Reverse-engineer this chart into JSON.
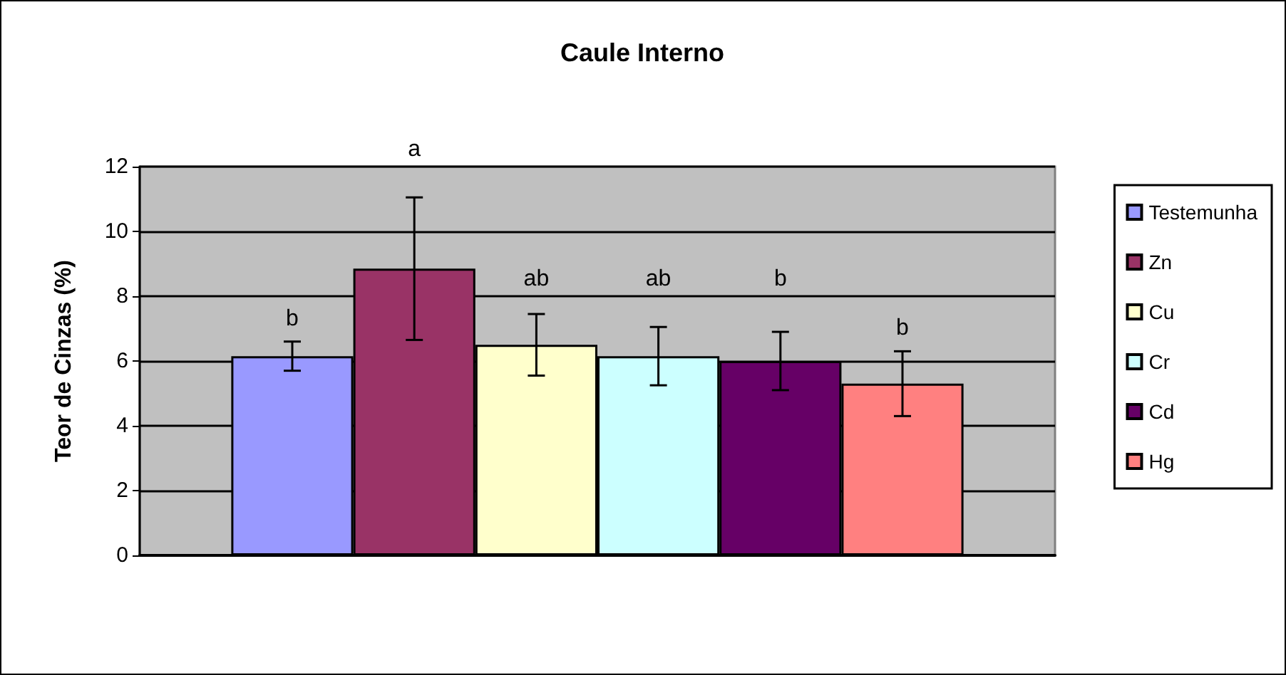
{
  "chart_data": {
    "type": "bar",
    "title": "Caule Interno",
    "ylabel": "Teor de Cinzas (%)",
    "categories": [
      null
    ],
    "series": [
      {
        "name": "Testemunha",
        "color": "#9999ff",
        "values": [
          6.15
        ],
        "errors": [
          0.45
        ]
      },
      {
        "name": "Zn",
        "color": "#993366",
        "values": [
          8.85
        ],
        "errors": [
          2.2
        ]
      },
      {
        "name": "Cu",
        "color": "#ffffcc",
        "values": [
          6.5
        ],
        "errors": [
          0.95
        ]
      },
      {
        "name": "Cr",
        "color": "#ccffff",
        "values": [
          6.15
        ],
        "errors": [
          0.9
        ]
      },
      {
        "name": "Cd",
        "color": "#660066",
        "values": [
          6.0
        ],
        "errors": [
          0.9
        ]
      },
      {
        "name": "Hg",
        "color": "#ff8080",
        "values": [
          5.3
        ],
        "errors": [
          1.0
        ]
      }
    ],
    "annotations": [
      "b",
      "a",
      "ab",
      "ab",
      "b",
      "b"
    ],
    "ylim": [
      0,
      12
    ],
    "yticks": [
      0,
      2,
      4,
      6,
      8,
      10,
      12
    ],
    "grid": "y",
    "legend": "right"
  }
}
